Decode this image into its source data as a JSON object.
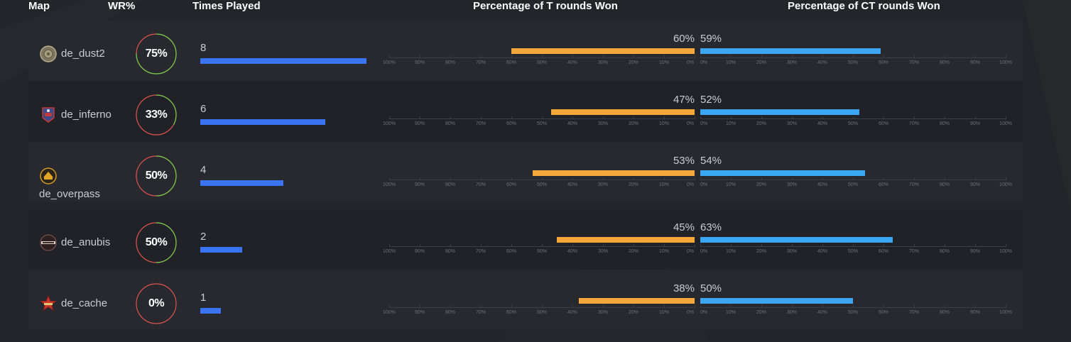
{
  "headers": {
    "map": "Map",
    "wr": "WR%",
    "played": "Times Played",
    "t_rounds": "Percentage of T rounds Won",
    "ct_rounds": "Percentage of CT rounds Won"
  },
  "scale_labels_t": [
    "100%",
    "90%",
    "80%",
    "70%",
    "60%",
    "50%",
    "40%",
    "30%",
    "20%",
    "10%",
    "0%"
  ],
  "scale_labels_ct": [
    "0%",
    "10%",
    "20%",
    "30%",
    "40%",
    "50%",
    "60%",
    "70%",
    "80%",
    "90%",
    "100%"
  ],
  "colors": {
    "played_bar": "#3a74f5",
    "t_bar": "#f5a83a",
    "ct_bar": "#3aa7f5",
    "ring_win": "#6fcf4a",
    "ring_loss": "#e0554e"
  },
  "rows": [
    {
      "map": "de_dust2",
      "icon": "dust2-icon",
      "wr": "75%",
      "wr_value": 75,
      "played": "8",
      "played_count": 8,
      "t_label": "60%",
      "t_value": 60,
      "ct_label": "59%",
      "ct_value": 59
    },
    {
      "map": "de_inferno",
      "icon": "inferno-icon",
      "wr": "33%",
      "wr_value": 33,
      "played": "6",
      "played_count": 6,
      "t_label": "47%",
      "t_value": 47,
      "ct_label": "52%",
      "ct_value": 52
    },
    {
      "map": "de_overpass",
      "icon": "overpass-icon",
      "wr": "50%",
      "wr_value": 50,
      "played": "4",
      "played_count": 4,
      "t_label": "53%",
      "t_value": 53,
      "ct_label": "54%",
      "ct_value": 54
    },
    {
      "map": "de_anubis",
      "icon": "anubis-icon",
      "wr": "50%",
      "wr_value": 50,
      "played": "2",
      "played_count": 2,
      "t_label": "45%",
      "t_value": 45,
      "ct_label": "63%",
      "ct_value": 63
    },
    {
      "map": "de_cache",
      "icon": "cache-icon",
      "wr": "0%",
      "wr_value": 0,
      "played": "1",
      "played_count": 1,
      "t_label": "38%",
      "t_value": 38,
      "ct_label": "50%",
      "ct_value": 50
    }
  ]
}
